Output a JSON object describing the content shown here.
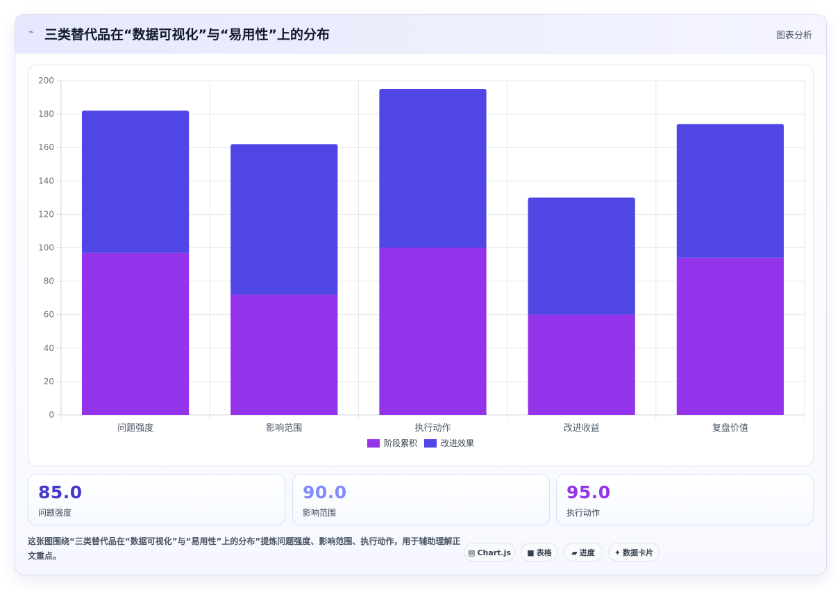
{
  "header": {
    "icon": "chart-line-icon",
    "title": "三类替代品在“数据可视化”与“易用性”上的分布",
    "tag": "图表分析"
  },
  "chart_data": {
    "type": "bar",
    "stacked": true,
    "categories": [
      "问题强度",
      "影响范围",
      "执行动作",
      "改进收益",
      "复盘价值"
    ],
    "series": [
      {
        "name": "阶段累积",
        "color": "#9333ea",
        "values": [
          97,
          72,
          100,
          60,
          94
        ]
      },
      {
        "name": "改进效果",
        "color": "#4f46e5",
        "values": [
          85,
          90,
          95,
          70,
          80
        ]
      }
    ],
    "ylim": [
      0,
      200
    ],
    "yticks": [
      0,
      20,
      40,
      60,
      80,
      100,
      120,
      140,
      160,
      180,
      200
    ],
    "grid": true,
    "legend_position": "bottom"
  },
  "stats": [
    {
      "value": "85.0",
      "label": "问题强度",
      "color": "#4338ca"
    },
    {
      "value": "90.0",
      "label": "影响范围",
      "color": "#818cf8"
    },
    {
      "value": "95.0",
      "label": "执行动作",
      "color": "#9333ea"
    }
  ],
  "footer": {
    "text": "这张图围绕“三类替代品在“数据可视化”与“易用性”上的分布”提炼问题强度、影响范围、执行动作，用于辅助理解正文重点。",
    "chips": [
      {
        "icon": "▤",
        "label": "Chart.js"
      },
      {
        "icon": "■",
        "label": "表格"
      },
      {
        "icon": "▰",
        "label": "进度"
      },
      {
        "icon": "✦",
        "label": "数据卡片"
      }
    ]
  }
}
